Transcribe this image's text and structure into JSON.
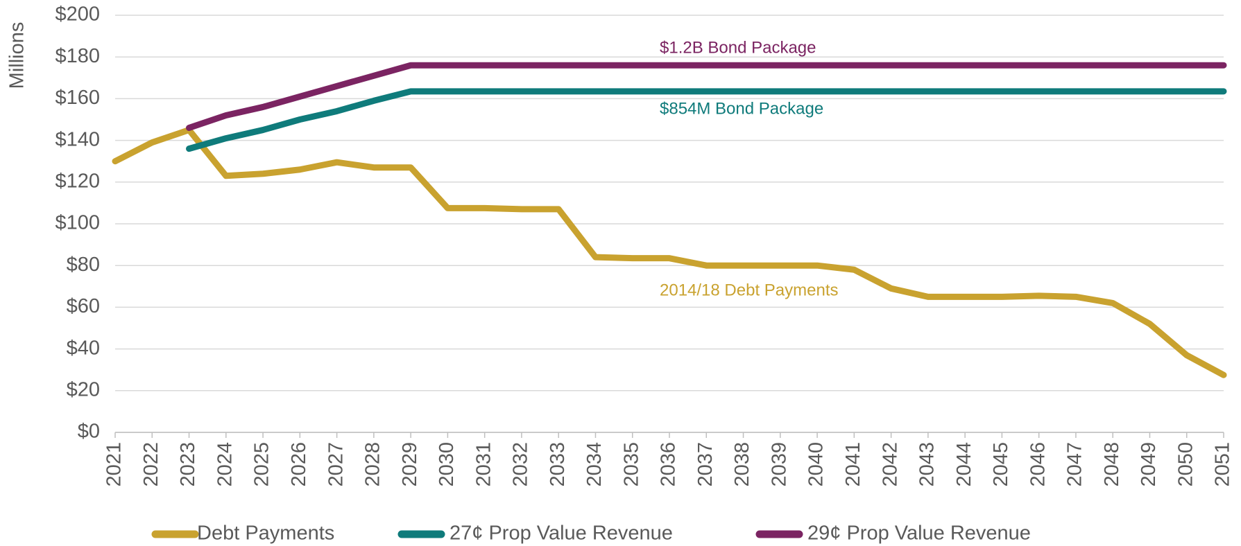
{
  "chart_data": {
    "type": "line",
    "y_label": "Millions",
    "x": [
      2021,
      2022,
      2023,
      2024,
      2025,
      2026,
      2027,
      2028,
      2029,
      2030,
      2031,
      2032,
      2033,
      2034,
      2035,
      2036,
      2037,
      2038,
      2039,
      2040,
      2041,
      2042,
      2043,
      2044,
      2045,
      2046,
      2047,
      2048,
      2049,
      2050,
      2051
    ],
    "xlim": [
      2021,
      2051
    ],
    "ylim": [
      0,
      200
    ],
    "yticks": [
      {
        "value": 0,
        "label": "$0"
      },
      {
        "value": 20,
        "label": "$20"
      },
      {
        "value": 40,
        "label": "$40"
      },
      {
        "value": 60,
        "label": "$60"
      },
      {
        "value": 80,
        "label": "$80"
      },
      {
        "value": 100,
        "label": "$100"
      },
      {
        "value": 120,
        "label": "$120"
      },
      {
        "value": 140,
        "label": "$140"
      },
      {
        "value": 160,
        "label": "$160"
      },
      {
        "value": 180,
        "label": "$180"
      },
      {
        "value": 200,
        "label": "$200"
      }
    ],
    "grid": true,
    "legend": "bottom",
    "series": [
      {
        "name": "Debt Payments",
        "color": "#c9a22f",
        "values": [
          130,
          139,
          145,
          123,
          124,
          126,
          129.5,
          127,
          127,
          107.5,
          107.5,
          107,
          107,
          84,
          83.5,
          83.5,
          80,
          80,
          80,
          80,
          78,
          69,
          65,
          65,
          65,
          65.5,
          65,
          62,
          52,
          37,
          27.5
        ]
      },
      {
        "name": "27¢ Prop Value Revenue",
        "color": "#0f7b7b",
        "values": [
          null,
          null,
          136,
          141,
          145,
          150,
          154,
          159,
          163.5,
          163.5,
          163.5,
          163.5,
          163.5,
          163.5,
          163.5,
          163.5,
          163.5,
          163.5,
          163.5,
          163.5,
          163.5,
          163.5,
          163.5,
          163.5,
          163.5,
          163.5,
          163.5,
          163.5,
          163.5,
          163.5,
          163.5
        ]
      },
      {
        "name": "29¢ Prop Value Revenue",
        "color": "#7b2462",
        "values": [
          null,
          null,
          146,
          152,
          156,
          161,
          166,
          171,
          176,
          176,
          176,
          176,
          176,
          176,
          176,
          176,
          176,
          176,
          176,
          176,
          176,
          176,
          176,
          176,
          176,
          176,
          176,
          176,
          176,
          176,
          176
        ]
      }
    ],
    "annotations": [
      {
        "text": "$1.2B Bond Package",
        "color": "#7b2462"
      },
      {
        "text": "$854M Bond Package",
        "color": "#0f7b7b"
      },
      {
        "text": "2014/18 Debt Payments",
        "color": "#c9a22f"
      }
    ]
  }
}
